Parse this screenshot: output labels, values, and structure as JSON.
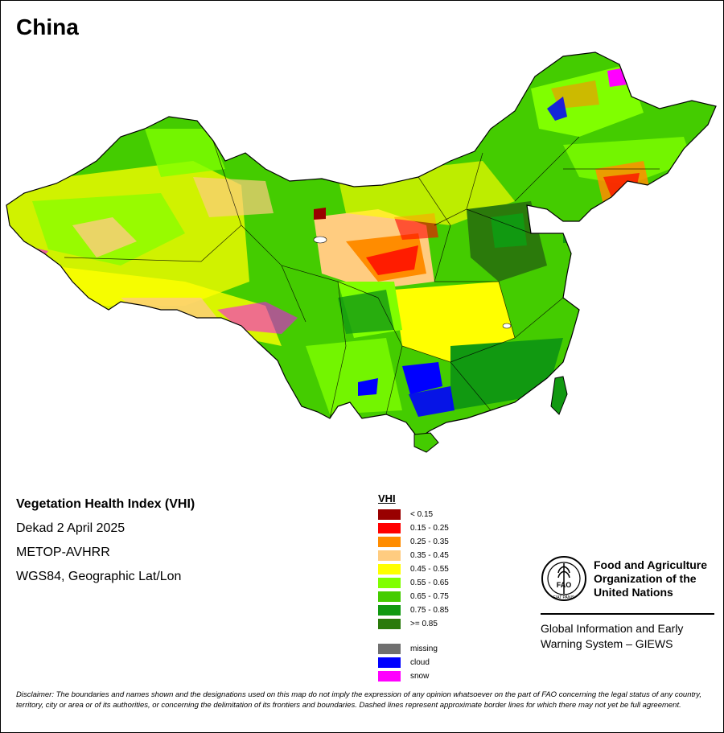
{
  "map": {
    "title": "China"
  },
  "info": {
    "index_name": "Vegetation Health Index (VHI)",
    "period": "Dekad 2 April 2025",
    "sensor": "METOP-AVHRR",
    "projection": "WGS84, Geographic Lat/Lon"
  },
  "legend": {
    "title": "VHI",
    "classes": [
      {
        "label": "< 0.15",
        "color": "#990000"
      },
      {
        "label": "0.15 - 0.25",
        "color": "#ff0000"
      },
      {
        "label": "0.25 - 0.35",
        "color": "#ff8c00"
      },
      {
        "label": "0.35 - 0.45",
        "color": "#ffcc80"
      },
      {
        "label": "0.45 - 0.55",
        "color": "#ffff00"
      },
      {
        "label": "0.55 - 0.65",
        "color": "#80ff00"
      },
      {
        "label": "0.65 - 0.75",
        "color": "#44cc00"
      },
      {
        "label": "0.75 - 0.85",
        "color": "#119911"
      },
      {
        "label": ">= 0.85",
        "color": "#2b7a0b"
      }
    ],
    "other": [
      {
        "label": "missing",
        "color": "#707070"
      },
      {
        "label": "cloud",
        "color": "#0000ff"
      },
      {
        "label": "snow",
        "color": "#ff00ff"
      }
    ]
  },
  "fao": {
    "logo_text": "FAO",
    "motto": "FIAT PANIS",
    "org_line1": "Food and Agriculture",
    "org_line2": "Organization of the",
    "org_line3": "United Nations",
    "giews_line1": "Global Information and Early",
    "giews_line2": "Warning System – GIEWS"
  },
  "disclaimer": "Disclaimer: The boundaries and names shown and the designations used on this map do not imply the expression of any opinion whatsoever on the part of FAO concerning the legal status of any country, territory, city or area or of its authorities, or concerning the delimitation of its frontiers and boundaries. Dashed lines represent approximate border lines for which there may not yet be full agreement."
}
